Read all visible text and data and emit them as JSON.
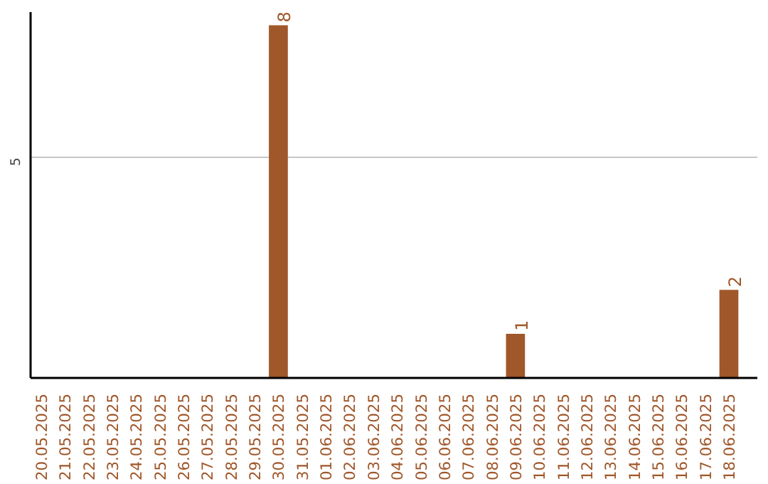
{
  "chart_data": {
    "type": "bar",
    "categories": [
      "20.05.2025",
      "21.05.2025",
      "22.05.2025",
      "23.05.2025",
      "24.05.2025",
      "25.05.2025",
      "26.05.2025",
      "27.05.2025",
      "28.05.2025",
      "29.05.2025",
      "30.05.2025",
      "31.05.2025",
      "01.06.2025",
      "02.06.2025",
      "03.06.2025",
      "04.06.2025",
      "05.06.2025",
      "06.06.2025",
      "07.06.2025",
      "08.06.2025",
      "09.06.2025",
      "10.06.2025",
      "11.06.2025",
      "12.06.2025",
      "13.06.2025",
      "14.06.2025",
      "15.06.2025",
      "16.06.2025",
      "17.06.2025",
      "18.06.2025"
    ],
    "values": [
      0,
      0,
      0,
      0,
      0,
      0,
      0,
      0,
      0,
      0,
      8,
      0,
      0,
      0,
      0,
      0,
      0,
      0,
      0,
      0,
      1,
      0,
      0,
      0,
      0,
      0,
      0,
      0,
      0,
      2
    ],
    "value_labels": [
      null,
      null,
      null,
      null,
      null,
      null,
      null,
      null,
      null,
      null,
      "8",
      null,
      null,
      null,
      null,
      null,
      null,
      null,
      null,
      null,
      "1",
      null,
      null,
      null,
      null,
      null,
      null,
      null,
      null,
      "2"
    ],
    "color": "#a0572a",
    "ylim": [
      0,
      8.3
    ],
    "yticks": [
      5
    ],
    "grid": "y"
  }
}
